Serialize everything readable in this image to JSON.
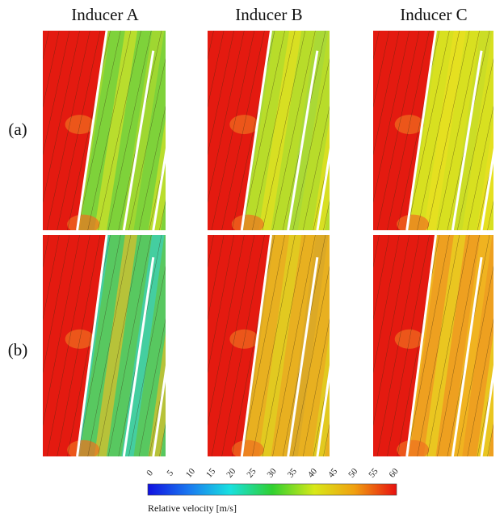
{
  "columns": [
    "Inducer A",
    "Inducer B",
    "Inducer C"
  ],
  "rows": [
    "(a)",
    "(b)"
  ],
  "colorbar": {
    "ticks": [
      "0",
      "5",
      "10",
      "15",
      "20",
      "25",
      "30",
      "35",
      "40",
      "45",
      "50",
      "55",
      "60"
    ],
    "label": "Relative velocity [m/s]"
  }
}
